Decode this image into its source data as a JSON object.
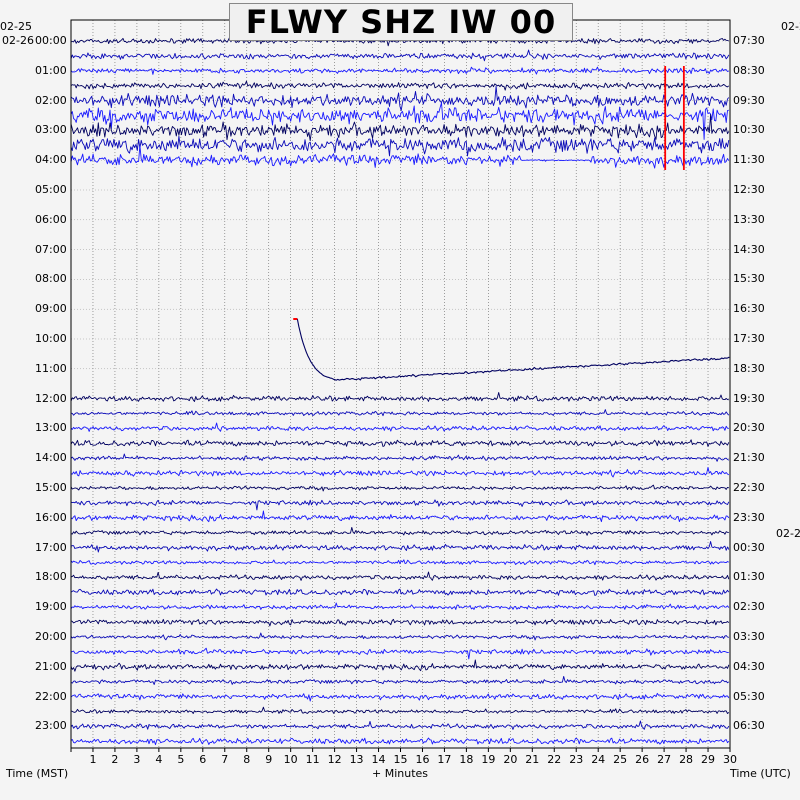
{
  "title": "FLWY SHZ IW 00",
  "left_date_top": "02-25",
  "left_date": "02-26",
  "right_date": "02-2",
  "left_axis_label": "Time (MST)",
  "bottom_axis_label": "+ Minutes",
  "right_axis_label": "Time (UTC)",
  "chart_data": {
    "type": "line",
    "xlabel": "+ Minutes",
    "xlim": [
      0,
      30
    ],
    "x_ticks": [
      "1",
      "2",
      "3",
      "4",
      "5",
      "6",
      "7",
      "8",
      "9",
      "10",
      "11",
      "12",
      "13",
      "14",
      "15",
      "16",
      "17",
      "18",
      "19",
      "20",
      "21",
      "22",
      "23",
      "24",
      "25",
      "26",
      "27",
      "28",
      "29",
      "30"
    ],
    "left_ticks": [
      "00:00",
      "01:00",
      "02:00",
      "03:00",
      "04:00",
      "05:00",
      "06:00",
      "07:00",
      "08:00",
      "09:00",
      "10:00",
      "11:00",
      "12:00",
      "13:00",
      "14:00",
      "15:00",
      "16:00",
      "17:00",
      "18:00",
      "19:00",
      "20:00",
      "21:00",
      "22:00",
      "23:00"
    ],
    "right_ticks": [
      "07:30",
      "08:30",
      "09:30",
      "10:30",
      "11:30",
      "12:30",
      "13:30",
      "14:30",
      "15:30",
      "16:30",
      "17:30",
      "18:30",
      "19:30",
      "20:30",
      "21:30",
      "22:30",
      "23:30",
      "00:30",
      "01:30",
      "02:30",
      "03:30",
      "04:30",
      "05:30",
      "06:30"
    ],
    "trace_colors": [
      "#000060",
      "#0a0ab8",
      "#1a1aff"
    ],
    "clip_color": "#ff0000"
  }
}
